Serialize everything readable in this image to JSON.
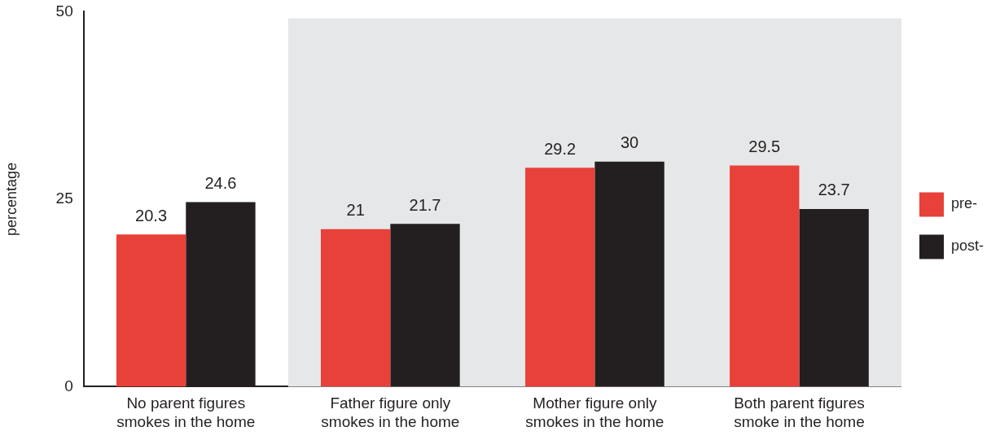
{
  "chart_data": {
    "type": "bar",
    "ylabel": "percentage",
    "categories": [
      "No parent figures smokes in the home",
      "Father figure only smokes in the home",
      "Mother figure only smokes in the home",
      "Both parent figures smoke in the home"
    ],
    "series": [
      {
        "name": "pre-",
        "color": "#e8413a",
        "values": [
          20.3,
          21,
          29.2,
          29.5
        ]
      },
      {
        "name": "post-",
        "color": "#231f20",
        "values": [
          24.6,
          21.7,
          30,
          23.7
        ]
      }
    ],
    "ylim": [
      0,
      50
    ],
    "yticks": [
      0,
      25,
      50
    ],
    "grid": false,
    "legend": "right",
    "data_labels": true,
    "bands": [
      {
        "axis": "x",
        "from": "Father figure only smokes in the home",
        "to": "Both parent figures smoke in the home",
        "color": "#e6e7e8"
      }
    ]
  }
}
